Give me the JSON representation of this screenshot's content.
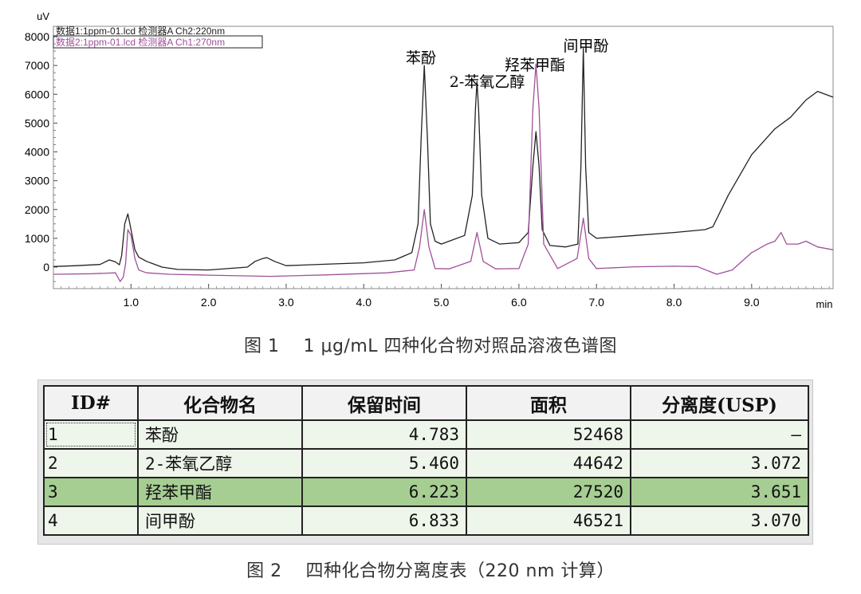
{
  "chromatogram": {
    "y_unit": "uV",
    "x_unit": "min",
    "legend": [
      {
        "text": "数据1:1ppm-01.lcd 检测器A Ch2:220nm",
        "color": "#222222"
      },
      {
        "text": "数据2:1ppm-01.lcd 检测器A Ch1:270nm",
        "color": "#a0509a"
      }
    ],
    "peak_labels": [
      "苯酚",
      "2-苯氧乙醇",
      "羟苯甲酯",
      "间甲酚"
    ],
    "y_ticks": [
      "8000",
      "7000",
      "6000",
      "5000",
      "4000",
      "3000",
      "2000",
      "1000",
      "0"
    ],
    "x_ticks": [
      "1.0",
      "2.0",
      "3.0",
      "4.0",
      "5.0",
      "6.0",
      "7.0",
      "8.0",
      "9.0"
    ]
  },
  "chart_data": {
    "type": "line",
    "title": "",
    "xlabel": "min",
    "ylabel": "uV",
    "xlim": [
      0.0,
      10.05
    ],
    "ylim": [
      -700,
      8200
    ],
    "grid": false,
    "legend_position": "top-left",
    "series": [
      {
        "name": "数据1:1ppm-01.lcd 检测器A Ch2:220nm",
        "color": "#222222",
        "x": [
          0.0,
          0.3,
          0.6,
          0.72,
          0.8,
          0.85,
          0.88,
          0.92,
          0.96,
          0.99,
          1.05,
          1.1,
          1.2,
          1.3,
          1.4,
          1.6,
          2.0,
          2.5,
          2.6,
          2.7,
          2.75,
          2.85,
          3.0,
          3.5,
          4.0,
          4.4,
          4.62,
          4.7,
          4.74,
          4.78,
          4.82,
          4.86,
          4.92,
          5.0,
          5.1,
          5.3,
          5.4,
          5.44,
          5.46,
          5.48,
          5.52,
          5.6,
          5.75,
          6.0,
          6.12,
          6.18,
          6.22,
          6.26,
          6.3,
          6.4,
          6.6,
          6.76,
          6.8,
          6.83,
          6.86,
          6.9,
          7.0,
          7.5,
          8.0,
          8.4,
          8.5,
          8.7,
          9.0,
          9.3,
          9.5,
          9.7,
          9.85,
          10.05
        ],
        "y": [
          20,
          50,
          90,
          250,
          180,
          80,
          400,
          1500,
          1850,
          1450,
          600,
          350,
          200,
          100,
          0,
          -80,
          -100,
          0,
          200,
          300,
          330,
          200,
          50,
          100,
          150,
          250,
          500,
          1500,
          4500,
          7000,
          4500,
          1500,
          900,
          800,
          900,
          1100,
          2500,
          5500,
          6450,
          5500,
          2500,
          1000,
          800,
          850,
          1200,
          3500,
          4700,
          3500,
          1300,
          750,
          700,
          800,
          3500,
          7600,
          3500,
          1200,
          1000,
          1100,
          1200,
          1300,
          1400,
          2500,
          3900,
          4800,
          5200,
          5800,
          6100,
          5900
        ]
      },
      {
        "name": "数据2:1ppm-01.lcd 检测器A Ch1:270nm",
        "color": "#a0509a",
        "x": [
          0.0,
          0.5,
          0.8,
          0.86,
          0.9,
          0.93,
          0.96,
          1.0,
          1.05,
          1.1,
          1.2,
          1.5,
          2.0,
          2.8,
          3.5,
          4.3,
          4.65,
          4.72,
          4.78,
          4.84,
          4.92,
          5.1,
          5.38,
          5.46,
          5.54,
          5.7,
          6.0,
          6.12,
          6.18,
          6.22,
          6.26,
          6.32,
          6.5,
          6.75,
          6.83,
          6.9,
          7.0,
          7.5,
          8.0,
          8.3,
          8.55,
          8.75,
          9.0,
          9.2,
          9.3,
          9.38,
          9.45,
          9.6,
          9.7,
          9.85,
          10.05
        ],
        "y": [
          -250,
          -230,
          -200,
          -500,
          -350,
          100,
          1300,
          1100,
          300,
          -100,
          -200,
          -250,
          -280,
          -320,
          -270,
          -200,
          -100,
          700,
          2000,
          700,
          -50,
          -60,
          200,
          1200,
          200,
          -60,
          -50,
          800,
          5500,
          7050,
          5500,
          800,
          -50,
          300,
          1700,
          300,
          -50,
          10,
          30,
          20,
          -250,
          -100,
          500,
          800,
          900,
          1200,
          800,
          800,
          900,
          700,
          600
        ]
      }
    ]
  },
  "captions": {
    "fig1": "图 1 　1 μg/mL 四种化合物对照品溶液色谱图",
    "fig2": "图 2 　四种化合物分离度表（220 nm 计算）"
  },
  "table": {
    "headers": [
      "ID#",
      "化合物名",
      "保留时间",
      "面积",
      "分离度(USP)"
    ],
    "rows": [
      {
        "id": "1",
        "name": "苯酚",
        "rt": "4.783",
        "area": "52468",
        "res": "—"
      },
      {
        "id": "2",
        "name": "2-苯氧乙醇",
        "rt": "5.460",
        "area": "44642",
        "res": "3.072"
      },
      {
        "id": "3",
        "name": "羟苯甲酯",
        "rt": "6.223",
        "area": "27520",
        "res": "3.651"
      },
      {
        "id": "4",
        "name": "间甲酚",
        "rt": "6.833",
        "area": "46521",
        "res": "3.070"
      }
    ]
  }
}
